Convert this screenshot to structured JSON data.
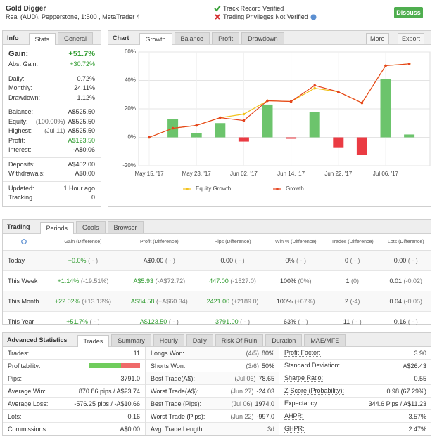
{
  "header": {
    "title": "Gold Digger",
    "account": "Real (AUD),",
    "broker": "Pepperstone",
    "details": ", 1:500 , MetaTrader 4",
    "verified": "Track Record Verified",
    "not_verified": "Trading Privileges Not Verified",
    "button": "Discuss"
  },
  "info": {
    "title": "Info",
    "tabs": [
      "Stats",
      "General"
    ],
    "groups": [
      [
        {
          "label": "Gain:",
          "value": "+51.7%",
          "color": "#2e9a2e"
        },
        {
          "label": "Abs. Gain:",
          "value": "+30.72%",
          "color": "#2e9a2e"
        }
      ],
      [
        {
          "label": "Daily:",
          "value": "0.72%"
        },
        {
          "label": "Monthly:",
          "value": "24.11%"
        },
        {
          "label": "Drawdown:",
          "value": "1.12%"
        }
      ],
      [
        {
          "label": "Balance:",
          "value": "A$525.50"
        },
        {
          "label": "Equity:",
          "note": "(100.00%)",
          "value": "A$525.50"
        },
        {
          "label": "Highest:",
          "note": "(Jul 11)",
          "value": "A$525.50"
        },
        {
          "label": "Profit:",
          "value": "A$123.50",
          "color": "#2e9a2e"
        },
        {
          "label": "Interest:",
          "value": "-A$0.06"
        }
      ],
      [
        {
          "label": "Deposits:",
          "value": "A$402.00"
        },
        {
          "label": "Withdrawals:",
          "value": "A$0.00"
        }
      ],
      [
        {
          "label": "Updated:",
          "value": "1 Hour ago"
        },
        {
          "label": "Tracking",
          "value": "0"
        }
      ]
    ]
  },
  "chart_panel": {
    "title": "Chart",
    "tabs": [
      "Growth",
      "Balance",
      "Profit",
      "Drawdown"
    ],
    "buttons": [
      "More",
      "Export"
    ]
  },
  "chart_data": {
    "type": "combo",
    "categories": [
      "May 15, '17",
      null,
      "May 23, '17",
      null,
      "Jun 02, '17",
      null,
      "Jun 14, '17",
      null,
      "Jun 22, '17",
      null,
      "Jul 06, '17",
      null
    ],
    "series": [
      {
        "type": "bar",
        "color": "#6cc46c",
        "negative_color": "#ea3b43",
        "values": [
          null,
          13,
          3,
          10,
          -3,
          23,
          -1,
          18,
          -7,
          -12.5,
          41,
          2
        ]
      },
      {
        "name": "Equity Growth",
        "type": "line",
        "color": "#f2c21b",
        "values": [
          0,
          6.4,
          8.4,
          13.8,
          16.3,
          25.7,
          25.2,
          34.5,
          32,
          24.2,
          50.4,
          51.7
        ]
      },
      {
        "name": "Growth",
        "type": "line",
        "color": "#e5441f",
        "values": [
          0,
          6.4,
          8.4,
          13.8,
          11.8,
          25.7,
          25.2,
          36.5,
          32,
          24.2,
          50.4,
          51.7
        ]
      }
    ],
    "ylim": [
      -20,
      60
    ],
    "yticks": [
      {
        "value": -20,
        "label": "-20%"
      },
      {
        "value": 0,
        "label": "0%"
      },
      {
        "value": 20,
        "label": "20%"
      },
      {
        "value": 40,
        "label": "40%"
      },
      {
        "value": 60,
        "label": "60%"
      }
    ],
    "grid": true
  },
  "trading": {
    "title": "Trading",
    "tabs": [
      "Periods",
      "Goals",
      "Browser"
    ],
    "columns": [
      "Gain (Difference)",
      "Profit (Difference)",
      "Pips (Difference)",
      "Win % (Difference)",
      "Trades (Difference)",
      "Lots (Difference)"
    ],
    "rows": [
      {
        "label": "Today",
        "cells": [
          {
            "value": "+0.0%",
            "diff": "( - )",
            "color": "#2e9a2e"
          },
          {
            "value": "A$0.00",
            "diff": "( - )"
          },
          {
            "value": "0.00",
            "diff": "( - )"
          },
          {
            "value": "0%",
            "diff": "( - )"
          },
          {
            "value": "0",
            "diff": "( - )"
          },
          {
            "value": "0.00",
            "diff": "( - )"
          }
        ]
      },
      {
        "label": "This Week",
        "cells": [
          {
            "value": "+1.14%",
            "diff": "(-19.51%)",
            "color": "#2e9a2e"
          },
          {
            "value": "A$5.93",
            "diff": "(-A$72.72)",
            "color": "#2e9a2e"
          },
          {
            "value": "447.00",
            "diff": "(-1527.0)",
            "color": "#2e9a2e"
          },
          {
            "value": "100%",
            "diff": "(0%)"
          },
          {
            "value": "1",
            "diff": "(0)"
          },
          {
            "value": "0.01",
            "diff": "(-0.02)"
          }
        ]
      },
      {
        "label": "This Month",
        "cells": [
          {
            "value": "+22.02%",
            "diff": "(+13.13%)",
            "color": "#2e9a2e"
          },
          {
            "value": "A$84.58",
            "diff": "(+A$60.34)",
            "color": "#2e9a2e"
          },
          {
            "value": "2421.00",
            "diff": "(+2189.0)",
            "color": "#2e9a2e"
          },
          {
            "value": "100%",
            "diff": "(+67%)"
          },
          {
            "value": "2",
            "diff": "(-4)"
          },
          {
            "value": "0.04",
            "diff": "(-0.05)"
          }
        ]
      },
      {
        "label": "This Year",
        "cells": [
          {
            "value": "+51.7%",
            "diff": "( - )",
            "color": "#2e9a2e"
          },
          {
            "value": "A$123.50",
            "diff": "( - )",
            "color": "#2e9a2e"
          },
          {
            "value": "3791.00",
            "diff": "( - )",
            "color": "#2e9a2e"
          },
          {
            "value": "63%",
            "diff": "( - )"
          },
          {
            "value": "11",
            "diff": "( - )"
          },
          {
            "value": "0.16",
            "diff": "( - )"
          }
        ]
      }
    ]
  },
  "advanced": {
    "title": "Advanced Statistics",
    "tabs": [
      "Trades",
      "Summary",
      "Hourly",
      "Daily",
      "Risk Of Ruin",
      "Duration",
      "MAE/MFE"
    ],
    "columns": [
      [
        {
          "label": "Trades:",
          "value": "11"
        },
        {
          "label": "Profitability:"
        },
        {
          "label": "Pips:",
          "value": "3791.0"
        },
        {
          "label": "Average Win:",
          "value": "870.86 pips / A$23.74"
        },
        {
          "label": "Average Loss:",
          "value": "-576.25 pips / -A$10.66"
        },
        {
          "label": "Lots:",
          "value": "0.16"
        },
        {
          "label": "Commissions:",
          "value": "A$0.00"
        }
      ],
      [
        {
          "label": "Longs Won:",
          "note": "(4/5)",
          "value": "80%"
        },
        {
          "label": "Shorts Won:",
          "note": "(3/6)",
          "value": "50%"
        },
        {
          "label": "Best Trade(A$):",
          "note": "(Jul 06)",
          "value": "78.65"
        },
        {
          "label": "Worst Trade(A$):",
          "note": "(Jun 27)",
          "value": "-24.03"
        },
        {
          "label": "Best Trade (Pips):",
          "note": "(Jul 06)",
          "value": "1974.0"
        },
        {
          "label": "Worst Trade (Pips):",
          "note": "(Jun 22)",
          "value": "-997.0"
        },
        {
          "label": "Avg. Trade Length:",
          "value": "3d"
        }
      ],
      [
        {
          "label": "Profit Factor:",
          "value": "3.90"
        },
        {
          "label": "Standard Deviation:",
          "value": "A$26.43"
        },
        {
          "label": "Sharpe Ratio:",
          "value": "0.55"
        },
        {
          "label": "Z-Score (Probability):",
          "value": "0.98 (67.29%)"
        },
        {
          "label": "Expectancy:",
          "value": "344.6 Pips / A$11.23"
        },
        {
          "label": "AHPR:",
          "value": "3.57%"
        },
        {
          "label": "GHPR:",
          "value": "2.47%"
        }
      ]
    ]
  }
}
